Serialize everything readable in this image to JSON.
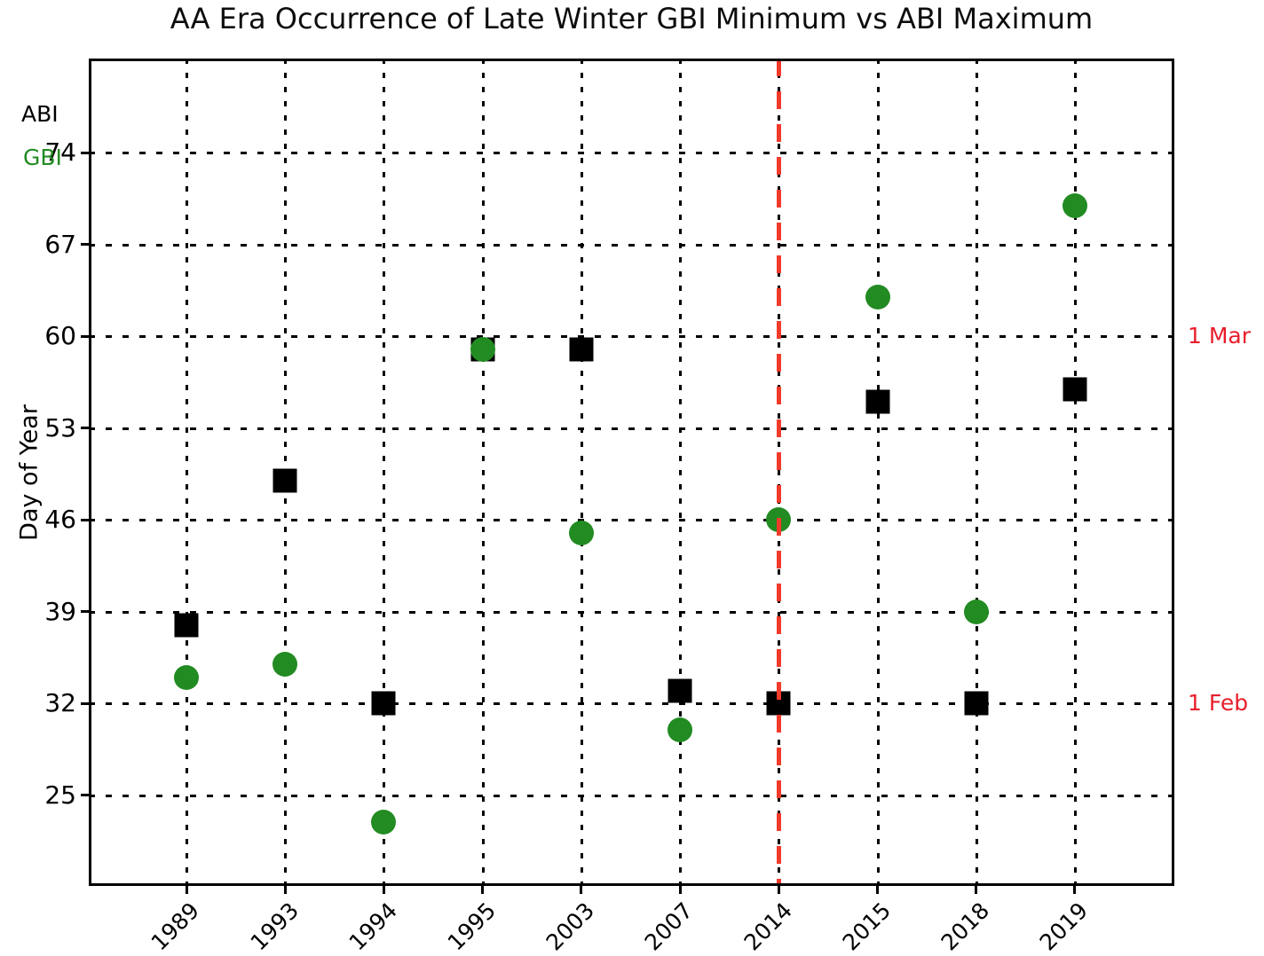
{
  "chart_data": {
    "type": "scatter",
    "title": "AA Era Occurrence of Late Winter GBI Minimum vs ABI Maximum",
    "ylabel": "Day of Year",
    "xlabel": "",
    "categories": [
      "1989",
      "1993",
      "1994",
      "1995",
      "2003",
      "2007",
      "2014",
      "2015",
      "2018",
      "2019"
    ],
    "y_ticks": [
      74,
      67,
      60,
      53,
      46,
      39,
      32,
      25
    ],
    "ylim": [
      18.1,
      81.2
    ],
    "grid": "dotted, both axes, black",
    "legend_position": "upper left inside plot",
    "series": [
      {
        "name": "ABI",
        "marker": "square",
        "color": "#000000",
        "values": [
          38,
          49,
          32,
          59,
          59,
          33,
          32,
          55,
          32,
          56
        ]
      },
      {
        "name": "GBI",
        "marker": "circle",
        "color": "#228B22",
        "values": [
          34,
          35,
          23,
          59,
          45,
          30,
          46,
          63,
          39,
          70
        ]
      }
    ],
    "reference_line": {
      "orientation": "vertical",
      "at_category": "2014",
      "style": "dashed",
      "color": "#f23a2b"
    },
    "right_axis_labels": [
      {
        "text": "1 Mar",
        "value": 60
      },
      {
        "text": "1 Feb",
        "value": 32
      }
    ],
    "right_label_color": "#e81e2c",
    "legend": {
      "items": [
        {
          "label": "ABI",
          "color": "#000000"
        },
        {
          "label": "GBI",
          "color": "#228B22"
        }
      ]
    }
  }
}
